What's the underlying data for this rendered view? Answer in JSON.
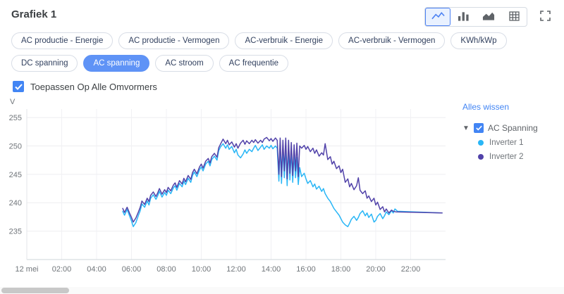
{
  "header": {
    "title": "Grafiek 1"
  },
  "toolbar": {
    "buttons": [
      {
        "icon": "line-chart-icon",
        "selected": true
      },
      {
        "icon": "bar-chart-icon",
        "selected": false
      },
      {
        "icon": "area-chart-icon",
        "selected": false
      },
      {
        "icon": "table-icon",
        "selected": false
      }
    ],
    "fullscreen_icon": "fullscreen-icon"
  },
  "chips": {
    "items": [
      {
        "label": "AC productie - Energie",
        "selected": false
      },
      {
        "label": "AC productie - Vermogen",
        "selected": false
      },
      {
        "label": "AC-verbruik - Energie",
        "selected": false
      },
      {
        "label": "AC-verbruik - Vermogen",
        "selected": false
      },
      {
        "label": "KWh/kWp",
        "selected": false
      },
      {
        "label": "DC spanning",
        "selected": false
      },
      {
        "label": "AC spanning",
        "selected": true
      },
      {
        "label": "AC stroom",
        "selected": false
      },
      {
        "label": "AC frequentie",
        "selected": false
      }
    ]
  },
  "apply_all": {
    "label": "Toepassen Op Alle Omvormers",
    "checked": true
  },
  "legend": {
    "clear_all_label": "Alles wissen",
    "group_label": "AC Spanning",
    "group_checked": true,
    "items": [
      {
        "label": "Inverter 1",
        "color": "#29b6f6"
      },
      {
        "label": "Inverter 2",
        "color": "#5142a9"
      }
    ]
  },
  "colors": {
    "accent": "#4285f4",
    "chip_selected_bg": "#5f93f6",
    "series1": "#29b6f6",
    "series2": "#5142a9"
  },
  "chart_data": {
    "type": "line",
    "ylabel": "V",
    "ylim": [
      230,
      256.5
    ],
    "xlim": [
      0,
      24
    ],
    "y_ticks": [
      235,
      240,
      245,
      250,
      255
    ],
    "x_ticks": [
      {
        "t": 0,
        "label": "12 mei"
      },
      {
        "t": 2,
        "label": "02:00"
      },
      {
        "t": 4,
        "label": "04:00"
      },
      {
        "t": 6,
        "label": "06:00"
      },
      {
        "t": 8,
        "label": "08:00"
      },
      {
        "t": 10,
        "label": "10:00"
      },
      {
        "t": 12,
        "label": "12:00"
      },
      {
        "t": 14,
        "label": "14:00"
      },
      {
        "t": 16,
        "label": "16:00"
      },
      {
        "t": 18,
        "label": "18:00"
      },
      {
        "t": 20,
        "label": "20:00"
      },
      {
        "t": 22,
        "label": "22:00"
      }
    ],
    "series": [
      {
        "name": "Inverter 1",
        "color": "#29b6f6",
        "points": [
          [
            5.5,
            238.5
          ],
          [
            5.6,
            237.8
          ],
          [
            5.75,
            238.8
          ],
          [
            5.9,
            237.6
          ],
          [
            6.0,
            236.8
          ],
          [
            6.1,
            235.8
          ],
          [
            6.25,
            236.5
          ],
          [
            6.4,
            237.8
          ],
          [
            6.5,
            238.6
          ],
          [
            6.6,
            239.8
          ],
          [
            6.75,
            239.2
          ],
          [
            6.9,
            240.3
          ],
          [
            7.0,
            239.6
          ],
          [
            7.1,
            240.8
          ],
          [
            7.25,
            241.4
          ],
          [
            7.4,
            240.6
          ],
          [
            7.5,
            241.2
          ],
          [
            7.6,
            242.0
          ],
          [
            7.75,
            241.0
          ],
          [
            7.9,
            241.8
          ],
          [
            8.0,
            241.3
          ],
          [
            8.1,
            242.2
          ],
          [
            8.25,
            241.6
          ],
          [
            8.4,
            242.6
          ],
          [
            8.5,
            243.0
          ],
          [
            8.6,
            242.2
          ],
          [
            8.75,
            243.4
          ],
          [
            8.9,
            242.8
          ],
          [
            9.0,
            243.8
          ],
          [
            9.1,
            243.2
          ],
          [
            9.25,
            244.3
          ],
          [
            9.4,
            243.6
          ],
          [
            9.5,
            244.8
          ],
          [
            9.6,
            245.4
          ],
          [
            9.75,
            244.6
          ],
          [
            9.9,
            245.8
          ],
          [
            10.0,
            246.3
          ],
          [
            10.1,
            245.6
          ],
          [
            10.25,
            246.8
          ],
          [
            10.4,
            247.3
          ],
          [
            10.5,
            246.5
          ],
          [
            10.6,
            247.6
          ],
          [
            10.75,
            248.2
          ],
          [
            10.9,
            247.5
          ],
          [
            11.0,
            249.2
          ],
          [
            11.1,
            249.8
          ],
          [
            11.25,
            250.4
          ],
          [
            11.4,
            249.6
          ],
          [
            11.5,
            250.2
          ],
          [
            11.6,
            249.4
          ],
          [
            11.75,
            249.9
          ],
          [
            11.9,
            248.8
          ],
          [
            12.0,
            249.4
          ],
          [
            12.1,
            248.4
          ],
          [
            12.25,
            247.9
          ],
          [
            12.4,
            248.6
          ],
          [
            12.5,
            249.3
          ],
          [
            12.6,
            248.7
          ],
          [
            12.75,
            249.4
          ],
          [
            12.9,
            249.0
          ],
          [
            13.0,
            249.6
          ],
          [
            13.1,
            250.1
          ],
          [
            13.25,
            249.2
          ],
          [
            13.4,
            249.8
          ],
          [
            13.5,
            250.2
          ],
          [
            13.6,
            249.4
          ],
          [
            13.75,
            250.0
          ],
          [
            13.9,
            249.6
          ],
          [
            14.0,
            250.1
          ],
          [
            14.1,
            249.5
          ],
          [
            14.25,
            250.0
          ],
          [
            14.35,
            249.6
          ],
          [
            14.45,
            243.8
          ],
          [
            14.52,
            250.0
          ],
          [
            14.6,
            243.4
          ],
          [
            14.68,
            249.6
          ],
          [
            14.76,
            244.4
          ],
          [
            14.84,
            250.0
          ],
          [
            14.92,
            243.0
          ],
          [
            15.0,
            249.4
          ],
          [
            15.08,
            244.0
          ],
          [
            15.16,
            249.0
          ],
          [
            15.24,
            243.6
          ],
          [
            15.32,
            248.5
          ],
          [
            15.4,
            244.4
          ],
          [
            15.48,
            248.0
          ],
          [
            15.56,
            243.2
          ],
          [
            15.64,
            246.2
          ],
          [
            15.75,
            244.6
          ],
          [
            15.9,
            245.2
          ],
          [
            16.0,
            244.2
          ],
          [
            16.1,
            243.4
          ],
          [
            16.25,
            243.9
          ],
          [
            16.4,
            242.8
          ],
          [
            16.5,
            243.3
          ],
          [
            16.6,
            242.4
          ],
          [
            16.75,
            242.9
          ],
          [
            16.9,
            242.0
          ],
          [
            17.0,
            242.5
          ],
          [
            17.1,
            241.6
          ],
          [
            17.25,
            240.8
          ],
          [
            17.4,
            240.2
          ],
          [
            17.5,
            239.6
          ],
          [
            17.6,
            239.0
          ],
          [
            17.75,
            238.4
          ],
          [
            17.9,
            237.8
          ],
          [
            18.0,
            237.2
          ],
          [
            18.1,
            236.6
          ],
          [
            18.25,
            236.1
          ],
          [
            18.4,
            235.8
          ],
          [
            18.5,
            236.4
          ],
          [
            18.6,
            237.1
          ],
          [
            18.75,
            237.6
          ],
          [
            18.9,
            236.9
          ],
          [
            19.0,
            237.4
          ],
          [
            19.1,
            238.1
          ],
          [
            19.25,
            238.6
          ],
          [
            19.4,
            237.7
          ],
          [
            19.5,
            238.2
          ],
          [
            19.6,
            237.4
          ],
          [
            19.75,
            238.0
          ],
          [
            19.9,
            236.6
          ],
          [
            20.0,
            236.9
          ],
          [
            20.1,
            237.6
          ],
          [
            20.25,
            238.1
          ],
          [
            20.4,
            237.2
          ],
          [
            20.5,
            237.7
          ],
          [
            20.6,
            238.4
          ],
          [
            20.75,
            237.9
          ],
          [
            20.9,
            238.6
          ],
          [
            21.0,
            238.2
          ],
          [
            21.1,
            238.9
          ],
          [
            21.25,
            238.5
          ],
          [
            23.8,
            238.2
          ]
        ]
      },
      {
        "name": "Inverter 2",
        "color": "#5142a9",
        "points": [
          [
            5.5,
            239.0
          ],
          [
            5.6,
            238.3
          ],
          [
            5.75,
            239.2
          ],
          [
            5.9,
            238.1
          ],
          [
            6.0,
            237.4
          ],
          [
            6.1,
            236.6
          ],
          [
            6.25,
            237.3
          ],
          [
            6.4,
            238.4
          ],
          [
            6.5,
            239.2
          ],
          [
            6.6,
            240.3
          ],
          [
            6.75,
            239.7
          ],
          [
            6.9,
            240.8
          ],
          [
            7.0,
            240.2
          ],
          [
            7.1,
            241.3
          ],
          [
            7.25,
            241.9
          ],
          [
            7.4,
            241.1
          ],
          [
            7.5,
            241.7
          ],
          [
            7.6,
            242.5
          ],
          [
            7.75,
            241.5
          ],
          [
            7.9,
            242.3
          ],
          [
            8.0,
            241.8
          ],
          [
            8.1,
            242.7
          ],
          [
            8.25,
            242.1
          ],
          [
            8.4,
            243.1
          ],
          [
            8.5,
            243.5
          ],
          [
            8.6,
            242.7
          ],
          [
            8.75,
            243.9
          ],
          [
            8.9,
            243.3
          ],
          [
            9.0,
            244.3
          ],
          [
            9.1,
            243.7
          ],
          [
            9.25,
            244.8
          ],
          [
            9.4,
            244.1
          ],
          [
            9.5,
            245.3
          ],
          [
            9.6,
            245.9
          ],
          [
            9.75,
            245.1
          ],
          [
            9.9,
            246.3
          ],
          [
            10.0,
            246.8
          ],
          [
            10.1,
            246.1
          ],
          [
            10.25,
            247.3
          ],
          [
            10.4,
            247.8
          ],
          [
            10.5,
            247.0
          ],
          [
            10.6,
            248.1
          ],
          [
            10.75,
            248.7
          ],
          [
            10.9,
            248.0
          ],
          [
            11.0,
            249.7
          ],
          [
            11.1,
            250.3
          ],
          [
            11.25,
            251.2
          ],
          [
            11.4,
            250.4
          ],
          [
            11.5,
            251.0
          ],
          [
            11.6,
            250.2
          ],
          [
            11.75,
            250.7
          ],
          [
            11.9,
            249.8
          ],
          [
            12.0,
            250.4
          ],
          [
            12.1,
            249.6
          ],
          [
            12.25,
            250.5
          ],
          [
            12.4,
            251.0
          ],
          [
            12.5,
            250.3
          ],
          [
            12.6,
            250.9
          ],
          [
            12.75,
            250.4
          ],
          [
            12.9,
            251.0
          ],
          [
            13.0,
            250.6
          ],
          [
            13.1,
            251.1
          ],
          [
            13.25,
            250.5
          ],
          [
            13.4,
            251.0
          ],
          [
            13.5,
            250.6
          ],
          [
            13.6,
            251.2
          ],
          [
            13.75,
            251.5
          ],
          [
            13.9,
            250.9
          ],
          [
            14.0,
            251.3
          ],
          [
            14.1,
            250.8
          ],
          [
            14.25,
            251.4
          ],
          [
            14.35,
            251.0
          ],
          [
            14.45,
            245.0
          ],
          [
            14.52,
            251.4
          ],
          [
            14.6,
            244.6
          ],
          [
            14.68,
            251.0
          ],
          [
            14.76,
            245.6
          ],
          [
            14.84,
            251.4
          ],
          [
            14.92,
            244.2
          ],
          [
            15.0,
            251.0
          ],
          [
            15.08,
            245.2
          ],
          [
            15.16,
            250.6
          ],
          [
            15.24,
            244.8
          ],
          [
            15.32,
            250.2
          ],
          [
            15.4,
            245.6
          ],
          [
            15.48,
            250.5
          ],
          [
            15.56,
            244.6
          ],
          [
            15.64,
            250.0
          ],
          [
            15.75,
            249.6
          ],
          [
            15.9,
            250.1
          ],
          [
            16.0,
            249.4
          ],
          [
            16.1,
            249.9
          ],
          [
            16.25,
            249.0
          ],
          [
            16.4,
            249.6
          ],
          [
            16.5,
            248.7
          ],
          [
            16.6,
            249.3
          ],
          [
            16.75,
            248.2
          ],
          [
            16.9,
            248.8
          ],
          [
            17.0,
            248.4
          ],
          [
            17.1,
            250.4
          ],
          [
            17.25,
            247.6
          ],
          [
            17.4,
            248.1
          ],
          [
            17.5,
            246.8
          ],
          [
            17.6,
            247.3
          ],
          [
            17.75,
            246.0
          ],
          [
            17.9,
            246.5
          ],
          [
            18.0,
            245.3
          ],
          [
            18.1,
            245.9
          ],
          [
            18.25,
            243.6
          ],
          [
            18.4,
            244.2
          ],
          [
            18.5,
            242.8
          ],
          [
            18.6,
            243.4
          ],
          [
            18.75,
            242.3
          ],
          [
            18.9,
            243.0
          ],
          [
            19.0,
            244.4
          ],
          [
            19.1,
            242.2
          ],
          [
            19.25,
            241.6
          ],
          [
            19.4,
            242.1
          ],
          [
            19.5,
            240.8
          ],
          [
            19.6,
            241.2
          ],
          [
            19.75,
            240.2
          ],
          [
            19.9,
            240.8
          ],
          [
            20.0,
            239.6
          ],
          [
            20.1,
            240.1
          ],
          [
            20.25,
            238.8
          ],
          [
            20.4,
            239.3
          ],
          [
            20.5,
            238.4
          ],
          [
            20.6,
            238.9
          ],
          [
            20.75,
            238.2
          ],
          [
            20.9,
            238.7
          ],
          [
            21.0,
            238.5
          ],
          [
            21.15,
            238.4
          ],
          [
            23.8,
            238.2
          ]
        ]
      }
    ]
  }
}
